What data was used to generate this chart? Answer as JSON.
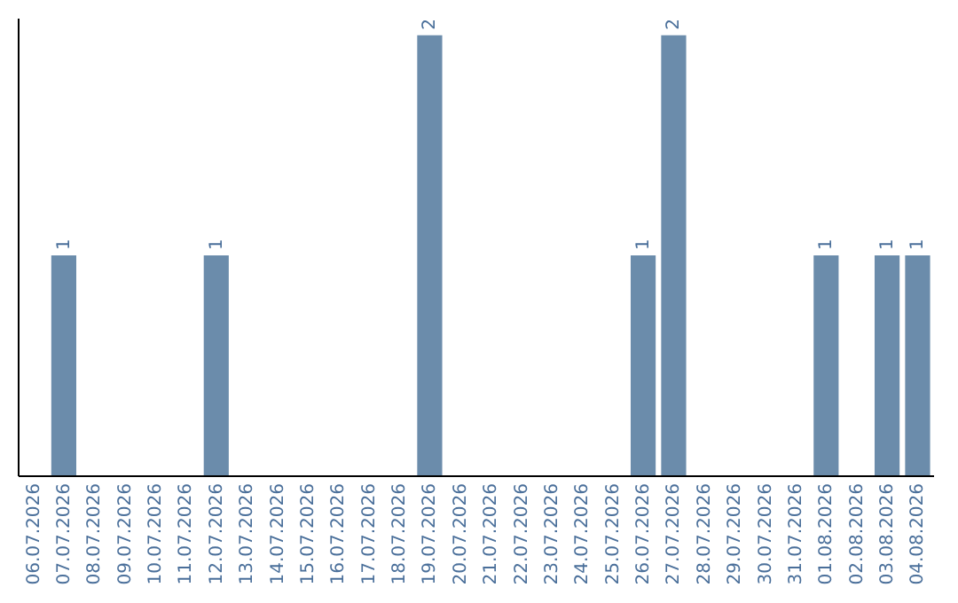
{
  "chart_data": {
    "type": "bar",
    "categories": [
      "06.07.2026",
      "07.07.2026",
      "08.07.2026",
      "09.07.2026",
      "10.07.2026",
      "11.07.2026",
      "12.07.2026",
      "13.07.2026",
      "14.07.2026",
      "15.07.2026",
      "16.07.2026",
      "17.07.2026",
      "18.07.2026",
      "19.07.2026",
      "20.07.2026",
      "21.07.2026",
      "22.07.2026",
      "23.07.2026",
      "24.07.2026",
      "25.07.2026",
      "26.07.2026",
      "27.07.2026",
      "28.07.2026",
      "29.07.2026",
      "30.07.2026",
      "31.07.2026",
      "01.08.2026",
      "02.08.2026",
      "03.08.2026",
      "04.08.2026"
    ],
    "values": [
      0,
      1,
      0,
      0,
      0,
      0,
      1,
      0,
      0,
      0,
      0,
      0,
      0,
      2,
      0,
      0,
      0,
      0,
      0,
      0,
      1,
      2,
      0,
      0,
      0,
      0,
      1,
      0,
      1,
      1
    ],
    "value_labels": [
      null,
      "1",
      null,
      null,
      null,
      null,
      "1",
      null,
      null,
      null,
      null,
      null,
      null,
      "2",
      null,
      null,
      null,
      null,
      null,
      null,
      "1",
      "2",
      null,
      null,
      null,
      null,
      "1",
      null,
      "1",
      "1"
    ],
    "color": "#6b8cab",
    "ylim": [
      0,
      2.08
    ],
    "tick_labels": "x",
    "grid": false
  }
}
